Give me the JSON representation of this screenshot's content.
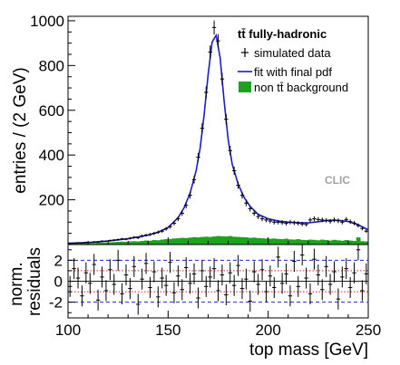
{
  "chart_data": {
    "type": "line",
    "xlabel": "top mass [GeV]",
    "x_ticks": [
      100,
      150,
      200,
      250
    ],
    "xlim": [
      100,
      250
    ],
    "panels": [
      {
        "name": "main",
        "ylabel": "entries / (2 GeV)",
        "ylim": [
          0,
          1020
        ],
        "y_ticks": [
          200,
          400,
          600,
          800,
          1000
        ],
        "legend": {
          "title": "tt̄ fully-hadronic",
          "entries": [
            "simulated data",
            "fit with final pdf",
            "non tt̄ background"
          ],
          "placement": "top-right"
        },
        "annotation": "CLIC",
        "series": [
          {
            "name": "simulated data",
            "kind": "points_with_errors",
            "x": [
              101,
              103,
              105,
              107,
              109,
              111,
              113,
              115,
              117,
              119,
              121,
              123,
              125,
              127,
              129,
              131,
              133,
              135,
              137,
              139,
              141,
              143,
              145,
              147,
              149,
              151,
              153,
              155,
              157,
              159,
              161,
              163,
              165,
              167,
              169,
              171,
              173,
              175,
              177,
              179,
              181,
              183,
              185,
              187,
              189,
              191,
              193,
              195,
              197,
              199,
              201,
              203,
              205,
              207,
              209,
              211,
              213,
              215,
              217,
              219,
              221,
              223,
              225,
              227,
              229,
              231,
              233,
              235,
              237,
              239,
              241,
              243,
              245,
              247,
              249
            ],
            "y": [
              5,
              6,
              8,
              7,
              10,
              9,
              12,
              11,
              15,
              14,
              18,
              20,
              22,
              25,
              24,
              28,
              32,
              30,
              38,
              42,
              45,
              50,
              55,
              60,
              70,
              80,
              95,
              115,
              140,
              175,
              220,
              290,
              390,
              520,
              680,
              860,
              970,
              910,
              740,
              560,
              420,
              330,
              265,
              220,
              185,
              160,
              140,
              125,
              115,
              110,
              105,
              100,
              100,
              98,
              95,
              100,
              97,
              95,
              92,
              90,
              110,
              115,
              112,
              110,
              108,
              104,
              110,
              106,
              100,
              112,
              102,
              96,
              85,
              72,
              60
            ]
          },
          {
            "name": "fit with final pdf",
            "kind": "line",
            "color": "#1c1cc8",
            "x": [
              100,
              110,
              120,
              130,
              140,
              145,
              150,
              155,
              158,
              161,
              164,
              166,
              168,
              170,
              172,
              174,
              176,
              178,
              180,
              182,
              185,
              188,
              191,
              195,
              200,
              205,
              210,
              215,
              220,
              225,
              230,
              235,
              240,
              245,
              250
            ],
            "y": [
              6,
              9,
              16,
              26,
              42,
              55,
              76,
              120,
              165,
              230,
              330,
              430,
              580,
              760,
              905,
              935,
              835,
              640,
              470,
              360,
              270,
              210,
              170,
              135,
              115,
              105,
              100,
              98,
              97,
              102,
              108,
              108,
              103,
              88,
              66
            ]
          },
          {
            "name": "non tt̄ background",
            "kind": "filled_histogram",
            "color": "#1ea11e",
            "x": [
              101,
              103,
              105,
              107,
              109,
              111,
              113,
              115,
              117,
              119,
              121,
              123,
              125,
              127,
              129,
              131,
              133,
              135,
              137,
              139,
              141,
              143,
              145,
              147,
              149,
              151,
              153,
              155,
              157,
              159,
              161,
              163,
              165,
              167,
              169,
              171,
              173,
              175,
              177,
              179,
              181,
              183,
              185,
              187,
              189,
              191,
              193,
              195,
              197,
              199,
              201,
              203,
              205,
              207,
              209,
              211,
              213,
              215,
              217,
              219,
              221,
              223,
              225,
              227,
              229,
              231,
              233,
              235,
              237,
              239,
              241,
              243,
              245,
              247,
              249
            ],
            "y": [
              3,
              4,
              4,
              5,
              6,
              5,
              7,
              8,
              9,
              8,
              10,
              11,
              12,
              13,
              12,
              14,
              15,
              14,
              16,
              18,
              17,
              20,
              19,
              22,
              24,
              25,
              27,
              28,
              30,
              29,
              31,
              33,
              32,
              34,
              35,
              34,
              36,
              38,
              37,
              36,
              38,
              35,
              34,
              33,
              32,
              30,
              31,
              29,
              28,
              27,
              26,
              27,
              25,
              24,
              26,
              23,
              22,
              24,
              21,
              20,
              22,
              21,
              19,
              22,
              20,
              18,
              21,
              19,
              17,
              20,
              18,
              16,
              32,
              15,
              14
            ]
          }
        ]
      },
      {
        "name": "residuals",
        "ylabel_lines": [
          "norm.",
          "residuals"
        ],
        "ylim": [
          -3.5,
          3.5
        ],
        "y_ticks": [
          -2,
          0,
          2
        ],
        "reference_lines": [
          {
            "y": 0,
            "color": "#222222",
            "style": "solid"
          },
          {
            "y": 1,
            "color": "#dd2222",
            "style": "dotted"
          },
          {
            "y": -1,
            "color": "#dd2222",
            "style": "dotted"
          },
          {
            "y": 2,
            "color": "#2222dd",
            "style": "dashed"
          },
          {
            "y": -2,
            "color": "#2222dd",
            "style": "dashed"
          }
        ],
        "series": [
          {
            "name": "residuals",
            "kind": "points_with_errors",
            "x": [
              101,
              103,
              105,
              107,
              109,
              111,
              113,
              115,
              117,
              119,
              121,
              123,
              125,
              127,
              129,
              131,
              133,
              135,
              137,
              139,
              141,
              143,
              145,
              147,
              149,
              151,
              153,
              155,
              157,
              159,
              161,
              163,
              165,
              167,
              169,
              171,
              173,
              175,
              177,
              179,
              181,
              183,
              185,
              187,
              189,
              191,
              193,
              195,
              197,
              199,
              201,
              203,
              205,
              207,
              209,
              211,
              213,
              215,
              217,
              219,
              221,
              223,
              225,
              227,
              229,
              231,
              233,
              235,
              237,
              239,
              241,
              243,
              245,
              247,
              249
            ],
            "y": [
              -0.5,
              1.2,
              0.3,
              -1.4,
              0.8,
              -0.2,
              1.6,
              -1.8,
              0.4,
              -0.9,
              1.1,
              -0.3,
              2.0,
              -1.2,
              0.6,
              -0.7,
              1.4,
              -2.2,
              0.2,
              1.7,
              -0.6,
              0.9,
              -1.5,
              0.3,
              -0.4,
              1.8,
              -1.1,
              0.5,
              -0.8,
              1.3,
              -0.2,
              0.7,
              -1.6,
              1.0,
              -0.5,
              0.4,
              1.2,
              -0.9,
              0.6,
              -1.3,
              0.8,
              -0.4,
              1.5,
              -0.7,
              0.2,
              -1.9,
              0.9,
              -0.3,
              1.1,
              -1.0,
              0.5,
              -0.6,
              2.3,
              -0.2,
              0.7,
              -1.4,
              1.9,
              -0.5,
              2.5,
              0.3,
              -1.2,
              2.1,
              0.6,
              -0.8,
              1.4,
              -0.3,
              0.9,
              -1.7,
              0.4,
              1.2,
              -0.6,
              0.8,
              3.0,
              -0.9,
              0.7
            ]
          }
        ]
      }
    ]
  }
}
